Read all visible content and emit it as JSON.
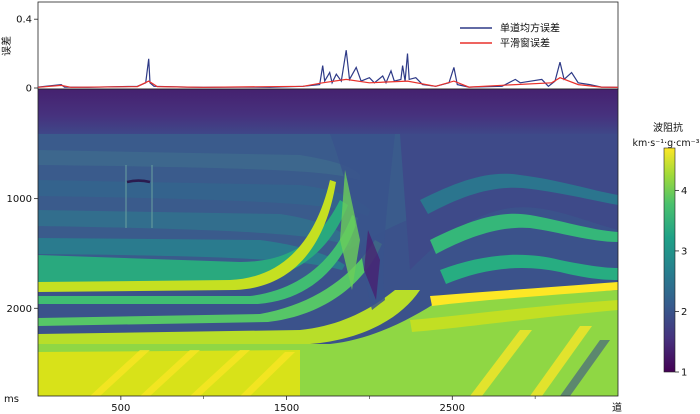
{
  "chart_data": [
    {
      "type": "line",
      "panel": "top",
      "ylabel": "误差",
      "ylim": [
        0,
        0.5
      ],
      "yticks": [
        "0.4",
        "0"
      ],
      "xlim": [
        0,
        3500
      ],
      "legend_position": "top-right",
      "grid": false,
      "series": [
        {
          "name": "单道均方误差",
          "color": "#2e3a87",
          "points": [
            [
              0,
              0.005
            ],
            [
              140,
              0.02
            ],
            [
              160,
              0.005
            ],
            [
              300,
              0.004
            ],
            [
              600,
              0.01
            ],
            [
              650,
              0.03
            ],
            [
              668,
              0.17
            ],
            [
              676,
              0.03
            ],
            [
              700,
              0.01
            ],
            [
              900,
              0.005
            ],
            [
              1000,
              0.004
            ],
            [
              1200,
              0.005
            ],
            [
              1400,
              0.004
            ],
            [
              1600,
              0.01
            ],
            [
              1700,
              0.02
            ],
            [
              1718,
              0.13
            ],
            [
              1730,
              0.04
            ],
            [
              1760,
              0.09
            ],
            [
              1775,
              0.03
            ],
            [
              1800,
              0.08
            ],
            [
              1830,
              0.04
            ],
            [
              1860,
              0.22
            ],
            [
              1880,
              0.05
            ],
            [
              1920,
              0.12
            ],
            [
              1950,
              0.04
            ],
            [
              2000,
              0.06
            ],
            [
              2030,
              0.03
            ],
            [
              2080,
              0.07
            ],
            [
              2100,
              0.03
            ],
            [
              2130,
              0.1
            ],
            [
              2150,
              0.04
            ],
            [
              2190,
              0.05
            ],
            [
              2200,
              0.13
            ],
            [
              2215,
              0.04
            ],
            [
              2230,
              0.2
            ],
            [
              2240,
              0.05
            ],
            [
              2280,
              0.06
            ],
            [
              2320,
              0.02
            ],
            [
              2400,
              0.01
            ],
            [
              2480,
              0.03
            ],
            [
              2510,
              0.12
            ],
            [
              2530,
              0.02
            ],
            [
              2600,
              0.005
            ],
            [
              2800,
              0.01
            ],
            [
              2880,
              0.05
            ],
            [
              2910,
              0.03
            ],
            [
              3040,
              0.05
            ],
            [
              3080,
              0.01
            ],
            [
              3120,
              0.04
            ],
            [
              3150,
              0.15
            ],
            [
              3175,
              0.05
            ],
            [
              3220,
              0.09
            ],
            [
              3260,
              0.03
            ],
            [
              3330,
              0.02
            ],
            [
              3400,
              0.005
            ],
            [
              3500,
              0.004
            ]
          ]
        },
        {
          "name": "平滑窗误差",
          "color": "#e8312b",
          "points": [
            [
              0,
              0.004
            ],
            [
              140,
              0.015
            ],
            [
              200,
              0.004
            ],
            [
              600,
              0.008
            ],
            [
              668,
              0.04
            ],
            [
              720,
              0.008
            ],
            [
              1000,
              0.004
            ],
            [
              1600,
              0.01
            ],
            [
              1718,
              0.03
            ],
            [
              1860,
              0.05
            ],
            [
              2000,
              0.03
            ],
            [
              2230,
              0.04
            ],
            [
              2400,
              0.01
            ],
            [
              2510,
              0.04
            ],
            [
              2600,
              0.005
            ],
            [
              2880,
              0.02
            ],
            [
              3100,
              0.03
            ],
            [
              3150,
              0.06
            ],
            [
              3260,
              0.02
            ],
            [
              3400,
              0.005
            ],
            [
              3500,
              0.004
            ]
          ]
        }
      ]
    },
    {
      "type": "heatmap",
      "panel": "bottom",
      "xlabel": "道",
      "ylabel": "ms",
      "xlim": [
        0,
        3500
      ],
      "ylim": [
        0,
        2800
      ],
      "y_inverted": true,
      "xticks": [
        500,
        1500,
        2500
      ],
      "yticks": [
        1000,
        2000
      ],
      "colorbar": {
        "title": "波阻抗",
        "unit": "km·s⁻¹·g·cm⁻³",
        "range": [
          1,
          4.7
        ],
        "ticks": [
          1,
          2,
          3,
          4
        ]
      }
    }
  ]
}
